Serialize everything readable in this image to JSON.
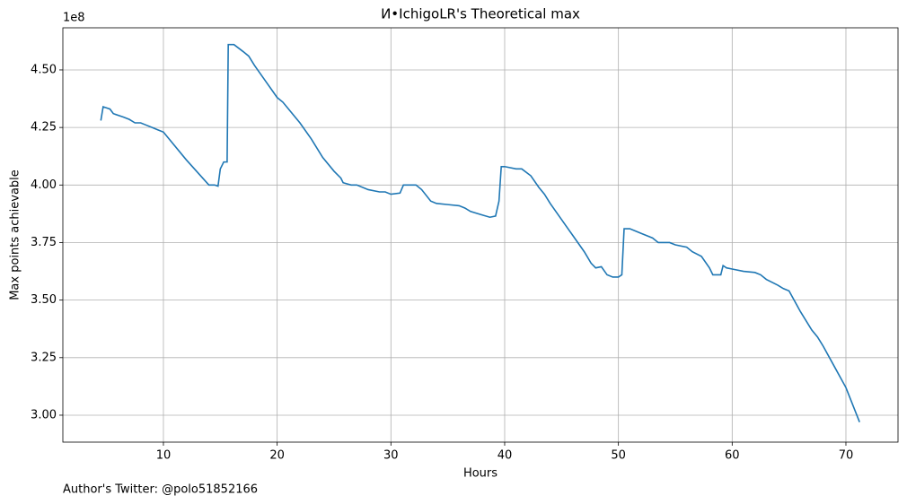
{
  "chart_data": {
    "type": "line",
    "title": "И•IchigoLR's Theoretical max",
    "x_label": "Hours",
    "y_label": "Max points achievable",
    "y_offset_label": "1e8",
    "footnote": "Author's Twitter: @polo51852166",
    "grid": true,
    "xlim": [
      1.16,
      74.58
    ],
    "ylim": [
      288300000,
      468300000
    ],
    "xticks": [
      10,
      20,
      30,
      40,
      50,
      60,
      70
    ],
    "yticks": [
      {
        "value": 300000000,
        "label": "3.00"
      },
      {
        "value": 325000000,
        "label": "3.25"
      },
      {
        "value": 350000000,
        "label": "3.50"
      },
      {
        "value": 375000000,
        "label": "3.75"
      },
      {
        "value": 400000000,
        "label": "4.00"
      },
      {
        "value": 425000000,
        "label": "4.25"
      },
      {
        "value": 450000000,
        "label": "4.50"
      }
    ],
    "series": [
      {
        "color": "#1f77b4",
        "x": [
          4.5,
          4.7,
          5.3,
          5.6,
          6.5,
          7,
          7.5,
          8,
          8.5,
          9,
          9.5,
          10,
          12,
          14,
          14.5,
          14.8,
          15,
          15.3,
          15.6,
          15.7,
          16.2,
          17,
          17.5,
          18,
          19,
          20,
          20.5,
          22,
          23,
          24,
          25,
          25.6,
          25.8,
          26.5,
          27,
          28,
          29,
          29.5,
          30,
          30.8,
          31.1,
          31.8,
          32.2,
          32.7,
          33.5,
          34,
          35,
          36,
          36.5,
          37,
          38,
          38.7,
          39.2,
          39.5,
          39.7,
          40,
          41,
          41.5,
          42.3,
          43,
          43.5,
          44,
          45,
          46,
          47,
          47.6,
          48,
          48.5,
          49,
          49.5,
          50,
          50.3,
          50.5,
          51,
          51.5,
          52,
          53,
          53.5,
          54.5,
          55,
          56,
          56.5,
          57.3,
          58,
          58.3,
          59,
          59.2,
          59.5,
          60,
          61,
          62,
          62.5,
          63,
          64,
          64.5,
          65,
          66,
          67,
          67.5,
          68,
          69,
          70,
          71.2
        ],
        "values": [
          428000000,
          434000000,
          433000000,
          431000000,
          429500000,
          428500000,
          427000000,
          427000000,
          426000000,
          425000000,
          424000000,
          423000000,
          411000000,
          400000000,
          400000000,
          399500000,
          407000000,
          410000000,
          410000000,
          461000000,
          461000000,
          458000000,
          456000000,
          452000000,
          445000000,
          438000000,
          436000000,
          427000000,
          420000000,
          412000000,
          406000000,
          403000000,
          401000000,
          400000000,
          400000000,
          398000000,
          397000000,
          397000000,
          396000000,
          396500000,
          400000000,
          400000000,
          400000000,
          398000000,
          393000000,
          392000000,
          391500000,
          391000000,
          390000000,
          388500000,
          387000000,
          386000000,
          386500000,
          393000000,
          408000000,
          408000000,
          407000000,
          407000000,
          404000000,
          399000000,
          396000000,
          392000000,
          385000000,
          378000000,
          371000000,
          366000000,
          364000000,
          364500000,
          361000000,
          360000000,
          360000000,
          361000000,
          381000000,
          381000000,
          380000000,
          379000000,
          377000000,
          375000000,
          375000000,
          374000000,
          373000000,
          371000000,
          369000000,
          364000000,
          361000000,
          361000000,
          365000000,
          364000000,
          363500000,
          362500000,
          362000000,
          361000000,
          359000000,
          356500000,
          355000000,
          354000000,
          345000000,
          337000000,
          334000000,
          330000000,
          321000000,
          312000000,
          297000000
        ]
      }
    ]
  }
}
